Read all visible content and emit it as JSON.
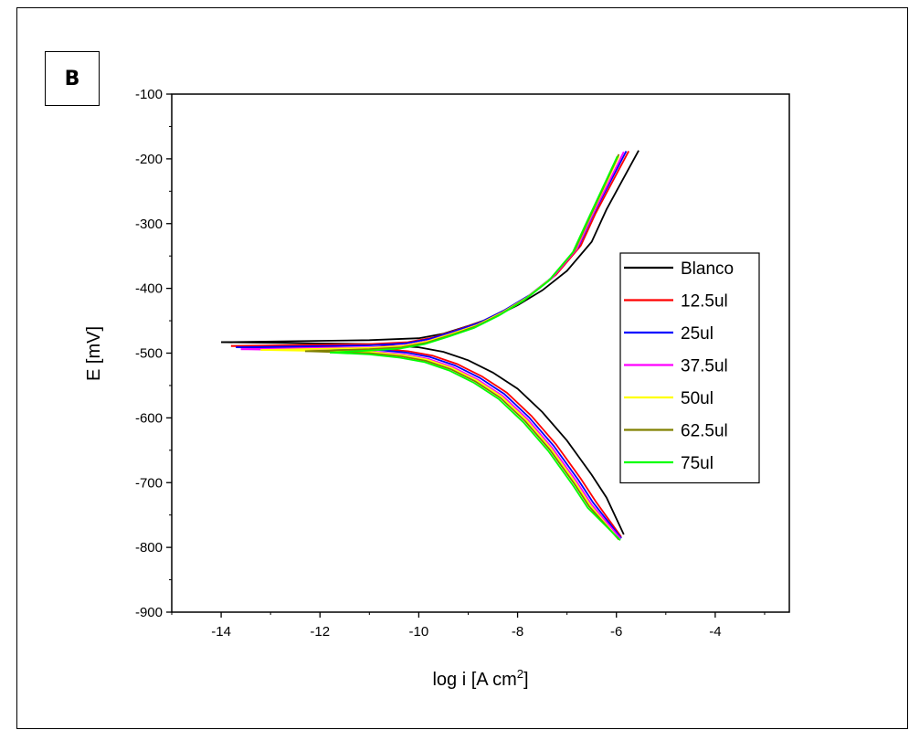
{
  "panel_label": "B",
  "chart_data": {
    "type": "line",
    "xlabel": "log i [A cm",
    "xlabel_sup": "2",
    "xlabel_suffix": "]",
    "ylabel": "E [mV]",
    "xlim": [
      -15,
      -2.5
    ],
    "ylim": [
      -900,
      -100
    ],
    "x_ticks": [
      -14,
      -12,
      -10,
      -8,
      -6,
      -4
    ],
    "y_ticks": [
      -100,
      -200,
      -300,
      -400,
      -500,
      -600,
      -700,
      -800,
      -900
    ],
    "legend_position": "right",
    "series": [
      {
        "name": "Blanco",
        "color": "#000000",
        "x0": -14.0,
        "ecorr": -483,
        "dx": 0.0,
        "anodic_end": [
          -5.55,
          -187
        ],
        "cathodic_end": [
          -5.85,
          -780
        ]
      },
      {
        "name": "12.5ul",
        "color": "#ff0000",
        "x0": -13.8,
        "ecorr": -489,
        "dx": -0.22,
        "anodic_end": [
          -5.75,
          -188
        ],
        "cathodic_end": [
          -5.9,
          -784
        ]
      },
      {
        "name": "25ul",
        "color": "#0000ff",
        "x0": -13.7,
        "ecorr": -491,
        "dx": -0.27,
        "anodic_end": [
          -5.8,
          -188
        ],
        "cathodic_end": [
          -5.9,
          -786
        ]
      },
      {
        "name": "37.5ul",
        "color": "#ff00ff",
        "x0": -13.6,
        "ecorr": -494,
        "dx": -0.3,
        "anodic_end": [
          -5.85,
          -189
        ],
        "cathodic_end": [
          -5.92,
          -786
        ]
      },
      {
        "name": "50ul",
        "color": "#ffff00",
        "x0": -13.2,
        "ecorr": -495,
        "dx": -0.33,
        "anodic_end": [
          -5.95,
          -196
        ],
        "cathodic_end": [
          -5.95,
          -788
        ]
      },
      {
        "name": "62.5ul",
        "color": "#808000",
        "x0": -12.3,
        "ecorr": -497,
        "dx": -0.35,
        "anodic_end": [
          -5.95,
          -193
        ],
        "cathodic_end": [
          -5.95,
          -788
        ]
      },
      {
        "name": "75ul",
        "color": "#00ff00",
        "x0": -11.8,
        "ecorr": -499,
        "dx": -0.38,
        "anodic_end": [
          -5.98,
          -196
        ],
        "cathodic_end": [
          -5.92,
          -789
        ]
      }
    ]
  }
}
